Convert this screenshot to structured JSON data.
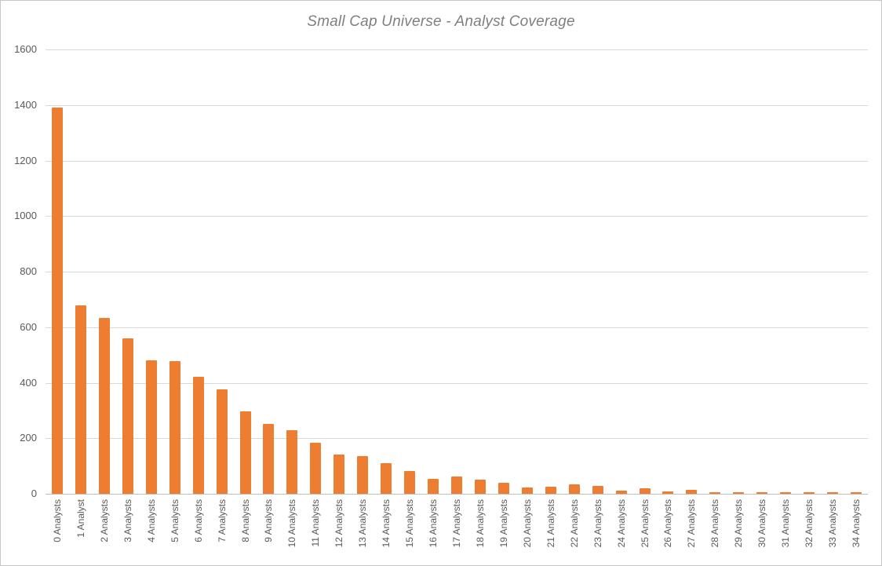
{
  "chart_data": {
    "type": "bar",
    "title": "Small Cap Universe - Analyst Coverage",
    "xlabel": "",
    "ylabel": "",
    "categories": [
      "0 Analysts",
      "1 Analyst",
      "2 Analysts",
      "3 Analysts",
      "4 Analysts",
      "5 Analysts",
      "6 Analysts",
      "7 Analysts",
      "8 Analysts",
      "9 Analysts",
      "10 Analysts",
      "11 Analysts",
      "12 Analysts",
      "13 Analysts",
      "14 Analysts",
      "15 Analysts",
      "16 Analysts",
      "17 Analysts",
      "18 Analysts",
      "19 Analysts",
      "20 Analysts",
      "21 Analysts",
      "22 Analysts",
      "23 Analysts",
      "24 Analysts",
      "25 Analysts",
      "26 Analysts",
      "27 Analysts",
      "28 Analysts",
      "29 Analysts",
      "30 Analysts",
      "31 Analysts",
      "32 Analysts",
      "33 Analysts",
      "34 Analysts"
    ],
    "values": [
      1391,
      679,
      633,
      560,
      480,
      477,
      422,
      376,
      297,
      253,
      229,
      184,
      140,
      137,
      110,
      81,
      55,
      61,
      51,
      39,
      23,
      25,
      33,
      27,
      12,
      19,
      8,
      13,
      6,
      7,
      7,
      7,
      7,
      7,
      7
    ],
    "ylim": [
      0,
      1600
    ],
    "yticks": [
      1600,
      1400,
      1200,
      1000,
      800,
      600,
      400,
      200,
      0
    ],
    "grid": true,
    "legend": false,
    "colors": {
      "bar": "#ed7d31",
      "axis_text": "#595959",
      "title_text": "#7f7f7f",
      "gridline": "#d9d9d9",
      "axis_line": "#bfbfbf"
    }
  }
}
